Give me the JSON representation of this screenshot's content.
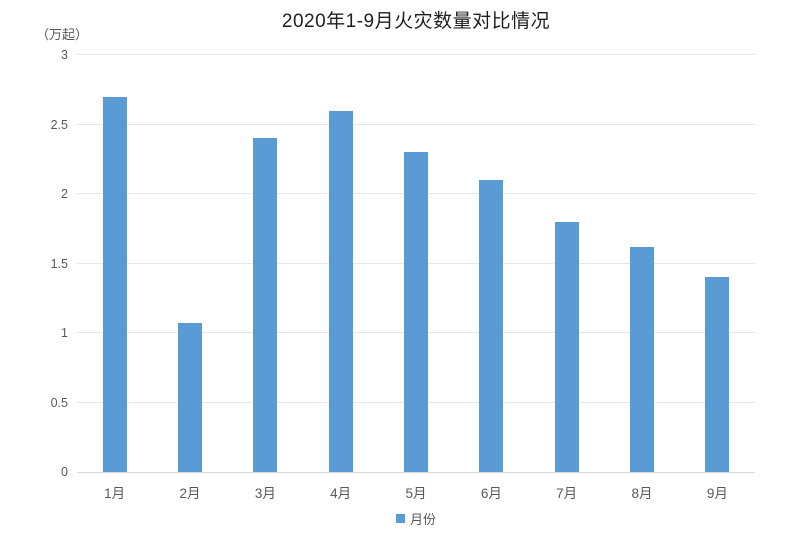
{
  "chart_data": {
    "type": "bar",
    "title": "2020年1-9月火灾数量对比情况",
    "unit_label": "（万起）",
    "categories": [
      "1月",
      "2月",
      "3月",
      "4月",
      "5月",
      "6月",
      "7月",
      "8月",
      "9月"
    ],
    "values": [
      2.7,
      1.07,
      2.4,
      2.6,
      2.3,
      2.1,
      1.8,
      1.62,
      1.4
    ],
    "xlabel": "",
    "ylabel": "（万起）",
    "ylim": [
      0,
      3
    ],
    "yticks": [
      0,
      0.5,
      1,
      1.5,
      2,
      2.5,
      3
    ],
    "ytick_labels": [
      "0",
      "0.5",
      "1",
      "1.5",
      "2",
      "2.5",
      "3"
    ],
    "grid": "horizontal",
    "legend": {
      "position": "bottom",
      "label": "月份"
    },
    "colors": {
      "bar": "#5B9BD5",
      "gridline": "#E6E6E6",
      "axis_line": "#D9D9D9",
      "tick_text": "#595959",
      "title_text": "#1F1F1F"
    }
  }
}
